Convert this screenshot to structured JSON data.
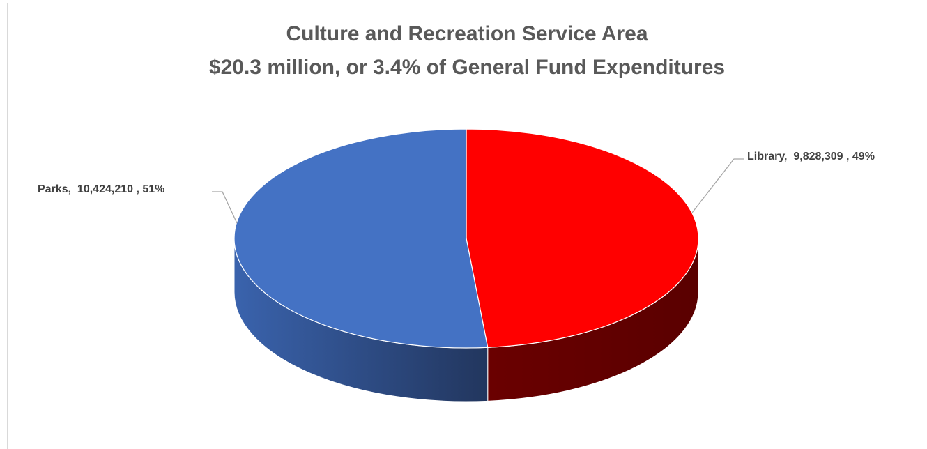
{
  "chart_data": {
    "type": "pie",
    "style": "3d",
    "title": "Culture and Recreation Service Area",
    "subtitle": "$20.3 million, or 3.4% of General Fund Expenditures",
    "slices": [
      {
        "label": "Parks",
        "value": 10424210,
        "value_text": "10,424,210",
        "percent": 51,
        "percent_text": "51%",
        "color": "#4472C4",
        "side_dark": "#2E4F8E"
      },
      {
        "label": "Library",
        "value": 9828309,
        "value_text": "9,828,309",
        "percent": 49,
        "percent_text": "49%",
        "color": "#FF0000",
        "side_dark": "#7A0000"
      }
    ],
    "data_labels": {
      "parks": "Parks,  10,424,210 , 51%",
      "library": "Library,  9,828,309 , 49%"
    }
  }
}
